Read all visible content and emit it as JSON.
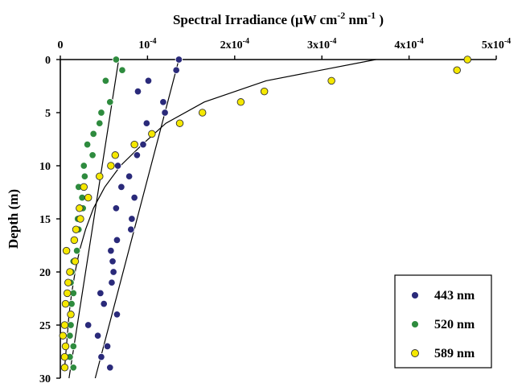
{
  "chart_data": {
    "type": "scatter",
    "title": "",
    "xlabel": "Spectral Irradiance (μW cm⁻² nm⁻¹)",
    "ylabel": "Depth (m)",
    "x_axis_position": "top",
    "y_inverted": true,
    "xlim": [
      0,
      0.0005
    ],
    "ylim": [
      0,
      30
    ],
    "x_tick_values": [
      0,
      0.0001,
      0.0002,
      0.0003,
      0.0004,
      0.0005
    ],
    "x_tick_labels": [
      {
        "base": "0",
        "exp": ""
      },
      {
        "base": "10",
        "exp": "-4"
      },
      {
        "base": "2x10",
        "exp": "-4"
      },
      {
        "base": "3x10",
        "exp": "-4"
      },
      {
        "base": "4x10",
        "exp": "-4"
      },
      {
        "base": "5x10",
        "exp": "-4"
      }
    ],
    "y_tick_values": [
      0,
      5,
      10,
      15,
      20,
      25,
      30
    ],
    "y_tick_labels": [
      "0",
      "5",
      "10",
      "15",
      "20",
      "25",
      "30"
    ],
    "grid": false,
    "legend_position": "bottom-right",
    "series": [
      {
        "name": "443 nm",
        "color": "#2a2a7a",
        "points": [
          [
            0.000136,
            0
          ],
          [
            0.000133,
            1
          ],
          [
            0.000101,
            2
          ],
          [
            8.9e-05,
            3
          ],
          [
            0.000118,
            4
          ],
          [
            0.00012,
            5
          ],
          [
            9.9e-05,
            6
          ],
          [
            9.5e-05,
            8
          ],
          [
            8.8e-05,
            9
          ],
          [
            6.6e-05,
            10
          ],
          [
            7.9e-05,
            11
          ],
          [
            7e-05,
            12
          ],
          [
            8.5e-05,
            13
          ],
          [
            6.4e-05,
            14
          ],
          [
            8.2e-05,
            15
          ],
          [
            8.1e-05,
            16
          ],
          [
            6.5e-05,
            17
          ],
          [
            5.8e-05,
            18
          ],
          [
            6e-05,
            19
          ],
          [
            6.1e-05,
            20
          ],
          [
            5.9e-05,
            21
          ],
          [
            4.6e-05,
            22
          ],
          [
            5e-05,
            23
          ],
          [
            6.5e-05,
            24
          ],
          [
            3.2e-05,
            25
          ],
          [
            4.3e-05,
            26
          ],
          [
            5.4e-05,
            27
          ],
          [
            4.7e-05,
            28
          ],
          [
            5.7e-05,
            29
          ]
        ],
        "fit": [
          [
            0.000136,
            0
          ],
          [
            4e-05,
            30
          ]
        ]
      },
      {
        "name": "520 nm",
        "color": "#2e8b3e",
        "points": [
          [
            6.4e-05,
            0
          ],
          [
            7.1e-05,
            1
          ],
          [
            5.2e-05,
            2
          ],
          [
            5.7e-05,
            4
          ],
          [
            4.7e-05,
            5
          ],
          [
            4.5e-05,
            6
          ],
          [
            3.8e-05,
            7
          ],
          [
            3.1e-05,
            8
          ],
          [
            3.7e-05,
            9
          ],
          [
            2.7e-05,
            10
          ],
          [
            2.8e-05,
            11
          ],
          [
            2.1e-05,
            12
          ],
          [
            2.5e-05,
            13
          ],
          [
            2.6e-05,
            14
          ],
          [
            2e-05,
            15
          ],
          [
            2.1e-05,
            16
          ],
          [
            1.6e-05,
            17
          ],
          [
            1.9e-05,
            18
          ],
          [
            1.5e-05,
            19
          ],
          [
            1.3e-05,
            20
          ],
          [
            1.2e-05,
            21
          ],
          [
            1.5e-05,
            22
          ],
          [
            1.3e-05,
            23
          ],
          [
            1.2e-05,
            24
          ],
          [
            1.2e-05,
            25
          ],
          [
            1.1e-05,
            26
          ],
          [
            1.5e-05,
            27
          ],
          [
            1.1e-05,
            28
          ],
          [
            1.5e-05,
            29
          ]
        ],
        "fit": [
          [
            6.7e-05,
            0
          ],
          [
            1e-05,
            30
          ]
        ]
      },
      {
        "name": "589 nm",
        "color": "#f5e800",
        "points": [
          [
            0.000467,
            0
          ],
          [
            0.000455,
            1
          ],
          [
            0.000311,
            2
          ],
          [
            0.000234,
            3
          ],
          [
            0.000207,
            4
          ],
          [
            0.000163,
            5
          ],
          [
            0.000137,
            6
          ],
          [
            0.000105,
            7
          ],
          [
            8.5e-05,
            8
          ],
          [
            6.3e-05,
            9
          ],
          [
            5.8e-05,
            10
          ],
          [
            4.5e-05,
            11
          ],
          [
            2.7e-05,
            12
          ],
          [
            3.2e-05,
            13
          ],
          [
            2.2e-05,
            14
          ],
          [
            2.3e-05,
            15
          ],
          [
            1.8e-05,
            16
          ],
          [
            1.6e-05,
            17
          ],
          [
            7e-06,
            18
          ],
          [
            1.7e-05,
            19
          ],
          [
            1.1e-05,
            20
          ],
          [
            9e-06,
            21
          ],
          [
            8e-06,
            22
          ],
          [
            6e-06,
            23
          ],
          [
            1.2e-05,
            24
          ],
          [
            5e-06,
            25
          ],
          [
            3e-06,
            26
          ],
          [
            6e-06,
            27
          ],
          [
            5e-06,
            28
          ],
          [
            5e-06,
            29
          ]
        ],
        "fit": [
          [
            0.000362,
            0
          ],
          [
            0.000236,
            2
          ],
          [
            0.000165,
            4
          ],
          [
            0.000121,
            6
          ],
          [
            9.4e-05,
            8
          ],
          [
            6.9e-05,
            10
          ],
          [
            5.1e-05,
            12
          ],
          [
            3.8e-05,
            14
          ],
          [
            2.9e-05,
            16
          ],
          [
            2.2e-05,
            18
          ],
          [
            1.7e-05,
            20
          ],
          [
            1.3e-05,
            22
          ],
          [
            1e-05,
            24
          ],
          [
            8e-06,
            26
          ],
          [
            6e-06,
            28
          ],
          [
            5e-06,
            29
          ]
        ]
      }
    ]
  }
}
